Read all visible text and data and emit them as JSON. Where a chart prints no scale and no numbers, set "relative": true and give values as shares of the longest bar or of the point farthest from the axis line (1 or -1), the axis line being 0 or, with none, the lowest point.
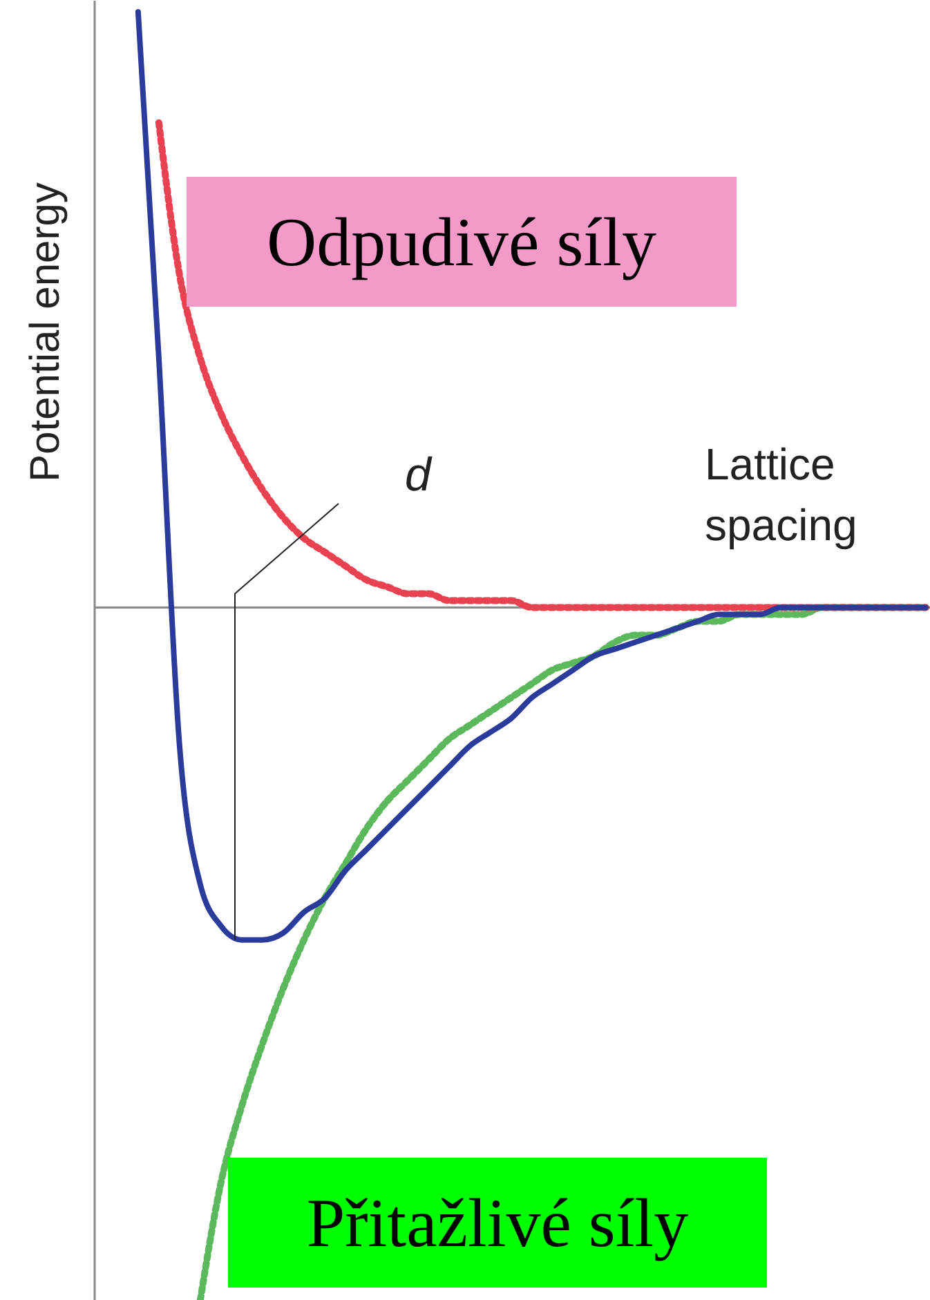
{
  "chart_data": {
    "type": "line",
    "relative": true,
    "ylabel": "Potential energy",
    "xlabel": "Lattice spacing",
    "annotations": [
      "d"
    ],
    "grid": false,
    "marker": "none",
    "categories": [
      null,
      null,
      null,
      null,
      null,
      null,
      null,
      null,
      null,
      null,
      null,
      null,
      null,
      null,
      null,
      null,
      null,
      null,
      null,
      null,
      null,
      null,
      null,
      null,
      null,
      null,
      null,
      null,
      null,
      null,
      null,
      null,
      null,
      null,
      null,
      null,
      null,
      null,
      null
    ],
    "series": [
      {
        "color": "#2b3b9b",
        "line_style": "solid",
        "values": [
          0.86,
          0.36,
          -0.2,
          -0.4,
          -0.46,
          -0.48,
          -0.48,
          -0.47,
          -0.44,
          -0.42,
          -0.38,
          -0.35,
          -0.32,
          -0.29,
          -0.26,
          -0.23,
          -0.2,
          -0.18,
          -0.16,
          -0.13,
          -0.11,
          -0.09,
          -0.07,
          -0.06,
          -0.05,
          -0.04,
          -0.03,
          -0.02,
          -0.01,
          -0.01,
          -0.01,
          0,
          0,
          0,
          0,
          0,
          0,
          0,
          0
        ]
      },
      {
        "name": "Odpudivé síly",
        "color": "#e8414f",
        "line_style": "dotted",
        "values": [
          null,
          0.7,
          0.48,
          0.36,
          0.28,
          0.22,
          0.17,
          0.13,
          0.1,
          0.08,
          0.06,
          0.04,
          0.03,
          0.02,
          0.02,
          0.01,
          0.01,
          0.01,
          0.01,
          0,
          0,
          0,
          0,
          0,
          0,
          0,
          0,
          0,
          0,
          0,
          0,
          0,
          0,
          0,
          0,
          0,
          0,
          0,
          0
        ]
      },
      {
        "name": "Přitažlivé síly",
        "color": "#5cb85c",
        "line_style": "dotted",
        "values": [
          null,
          null,
          null,
          -1,
          -0.83,
          -0.72,
          -0.63,
          -0.55,
          -0.48,
          -0.42,
          -0.37,
          -0.32,
          -0.28,
          -0.25,
          -0.22,
          -0.19,
          -0.17,
          -0.15,
          -0.13,
          -0.11,
          -0.09,
          -0.08,
          -0.07,
          -0.05,
          -0.04,
          -0.04,
          -0.03,
          -0.02,
          -0.02,
          -0.01,
          -0.01,
          -0.01,
          -0.01,
          0,
          0,
          0,
          0,
          0,
          0
        ]
      }
    ]
  }
}
